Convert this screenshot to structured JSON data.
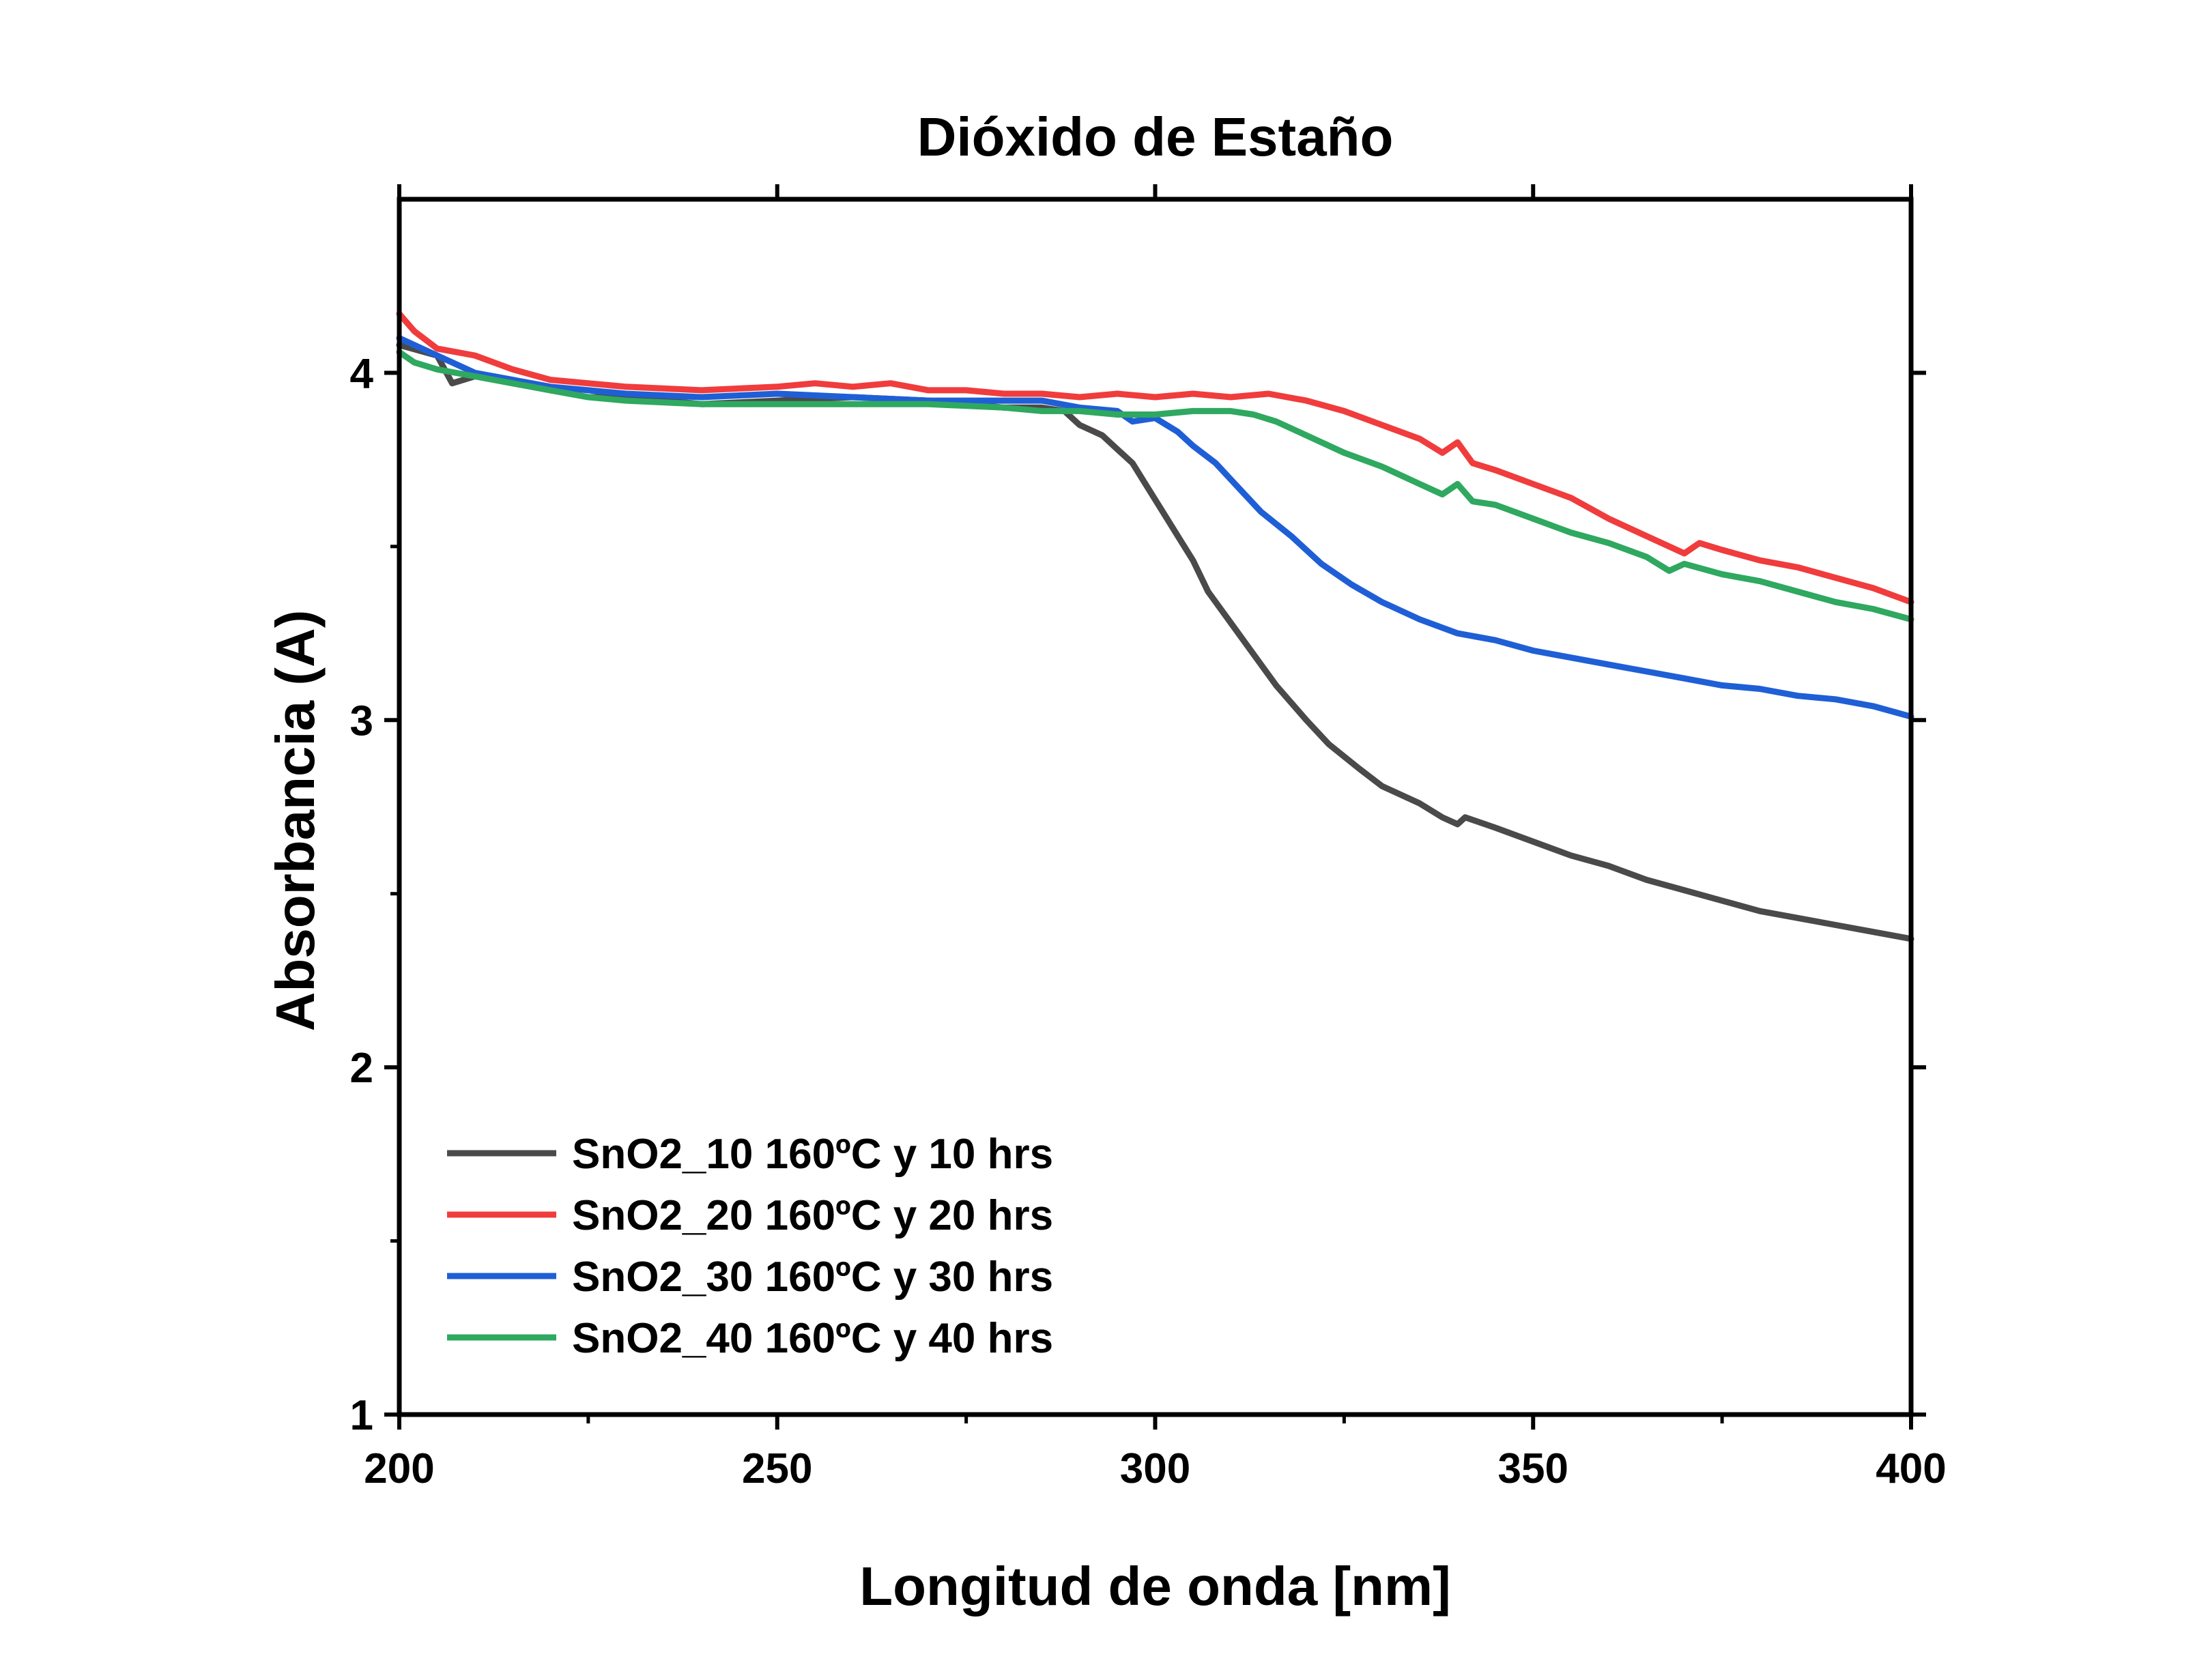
{
  "chart_data": {
    "type": "line",
    "title": "Dióxido de Estaño",
    "xlabel": "Longitud de onda [nm]",
    "ylabel": "Absorbancia (A)",
    "xlim": [
      200,
      400
    ],
    "ylim": [
      1,
      4.5
    ],
    "x_ticks": [
      200,
      250,
      300,
      350,
      400
    ],
    "y_ticks": [
      1,
      2,
      3,
      4
    ],
    "grid": false,
    "legend_position": "bottom-left",
    "series": [
      {
        "name": "SnO2_10 160ºC y 10 hrs",
        "color": "#4a4a4a",
        "points": [
          [
            200,
            4.08
          ],
          [
            205,
            4.05
          ],
          [
            207,
            3.97
          ],
          [
            210,
            3.99
          ],
          [
            215,
            3.97
          ],
          [
            220,
            3.95
          ],
          [
            225,
            3.93
          ],
          [
            230,
            3.93
          ],
          [
            240,
            3.91
          ],
          [
            250,
            3.92
          ],
          [
            260,
            3.93
          ],
          [
            270,
            3.92
          ],
          [
            280,
            3.9
          ],
          [
            285,
            3.9
          ],
          [
            288,
            3.89
          ],
          [
            290,
            3.85
          ],
          [
            293,
            3.82
          ],
          [
            295,
            3.78
          ],
          [
            297,
            3.74
          ],
          [
            299,
            3.67
          ],
          [
            301,
            3.6
          ],
          [
            303,
            3.53
          ],
          [
            305,
            3.46
          ],
          [
            307,
            3.37
          ],
          [
            310,
            3.28
          ],
          [
            313,
            3.19
          ],
          [
            316,
            3.1
          ],
          [
            320,
            3.0
          ],
          [
            323,
            2.93
          ],
          [
            327,
            2.86
          ],
          [
            330,
            2.81
          ],
          [
            335,
            2.76
          ],
          [
            338,
            2.72
          ],
          [
            340,
            2.7
          ],
          [
            341,
            2.72
          ],
          [
            345,
            2.69
          ],
          [
            350,
            2.65
          ],
          [
            355,
            2.61
          ],
          [
            360,
            2.58
          ],
          [
            365,
            2.54
          ],
          [
            370,
            2.51
          ],
          [
            375,
            2.48
          ],
          [
            380,
            2.45
          ],
          [
            385,
            2.43
          ],
          [
            390,
            2.41
          ],
          [
            395,
            2.39
          ],
          [
            400,
            2.37
          ]
        ]
      },
      {
        "name": "SnO2_20 160ºC y 20 hrs",
        "color": "#f03c3c",
        "points": [
          [
            200,
            4.17
          ],
          [
            202,
            4.12
          ],
          [
            205,
            4.07
          ],
          [
            210,
            4.05
          ],
          [
            215,
            4.01
          ],
          [
            220,
            3.98
          ],
          [
            225,
            3.97
          ],
          [
            230,
            3.96
          ],
          [
            240,
            3.95
          ],
          [
            250,
            3.96
          ],
          [
            255,
            3.97
          ],
          [
            260,
            3.96
          ],
          [
            265,
            3.97
          ],
          [
            270,
            3.95
          ],
          [
            275,
            3.95
          ],
          [
            280,
            3.94
          ],
          [
            285,
            3.94
          ],
          [
            290,
            3.93
          ],
          [
            295,
            3.94
          ],
          [
            300,
            3.93
          ],
          [
            305,
            3.94
          ],
          [
            310,
            3.93
          ],
          [
            315,
            3.94
          ],
          [
            320,
            3.92
          ],
          [
            325,
            3.89
          ],
          [
            330,
            3.85
          ],
          [
            335,
            3.81
          ],
          [
            338,
            3.77
          ],
          [
            340,
            3.8
          ],
          [
            342,
            3.74
          ],
          [
            345,
            3.72
          ],
          [
            350,
            3.68
          ],
          [
            355,
            3.64
          ],
          [
            360,
            3.58
          ],
          [
            365,
            3.53
          ],
          [
            370,
            3.48
          ],
          [
            372,
            3.51
          ],
          [
            375,
            3.49
          ],
          [
            380,
            3.46
          ],
          [
            385,
            3.44
          ],
          [
            390,
            3.41
          ],
          [
            395,
            3.38
          ],
          [
            400,
            3.34
          ]
        ]
      },
      {
        "name": "SnO2_30 160ºC y 30 hrs",
        "color": "#1f5fd6",
        "points": [
          [
            200,
            4.1
          ],
          [
            205,
            4.05
          ],
          [
            210,
            4.0
          ],
          [
            215,
            3.98
          ],
          [
            220,
            3.96
          ],
          [
            225,
            3.95
          ],
          [
            230,
            3.94
          ],
          [
            240,
            3.93
          ],
          [
            250,
            3.94
          ],
          [
            260,
            3.93
          ],
          [
            270,
            3.92
          ],
          [
            280,
            3.92
          ],
          [
            285,
            3.92
          ],
          [
            290,
            3.9
          ],
          [
            295,
            3.89
          ],
          [
            297,
            3.86
          ],
          [
            300,
            3.87
          ],
          [
            303,
            3.83
          ],
          [
            305,
            3.79
          ],
          [
            308,
            3.74
          ],
          [
            311,
            3.67
          ],
          [
            314,
            3.6
          ],
          [
            318,
            3.53
          ],
          [
            322,
            3.45
          ],
          [
            326,
            3.39
          ],
          [
            330,
            3.34
          ],
          [
            335,
            3.29
          ],
          [
            340,
            3.25
          ],
          [
            345,
            3.23
          ],
          [
            350,
            3.2
          ],
          [
            355,
            3.18
          ],
          [
            360,
            3.16
          ],
          [
            365,
            3.14
          ],
          [
            370,
            3.12
          ],
          [
            375,
            3.1
          ],
          [
            380,
            3.09
          ],
          [
            385,
            3.07
          ],
          [
            390,
            3.06
          ],
          [
            395,
            3.04
          ],
          [
            400,
            3.01
          ]
        ]
      },
      {
        "name": "SnO2_40 160ºC y 40 hrs",
        "color": "#2fa860",
        "points": [
          [
            200,
            4.06
          ],
          [
            202,
            4.03
          ],
          [
            205,
            4.01
          ],
          [
            210,
            3.99
          ],
          [
            215,
            3.97
          ],
          [
            220,
            3.95
          ],
          [
            225,
            3.93
          ],
          [
            230,
            3.92
          ],
          [
            240,
            3.91
          ],
          [
            250,
            3.91
          ],
          [
            260,
            3.91
          ],
          [
            270,
            3.91
          ],
          [
            280,
            3.9
          ],
          [
            285,
            3.89
          ],
          [
            290,
            3.89
          ],
          [
            295,
            3.88
          ],
          [
            300,
            3.88
          ],
          [
            305,
            3.89
          ],
          [
            310,
            3.89
          ],
          [
            313,
            3.88
          ],
          [
            316,
            3.86
          ],
          [
            320,
            3.82
          ],
          [
            325,
            3.77
          ],
          [
            330,
            3.73
          ],
          [
            335,
            3.68
          ],
          [
            338,
            3.65
          ],
          [
            340,
            3.68
          ],
          [
            342,
            3.63
          ],
          [
            345,
            3.62
          ],
          [
            350,
            3.58
          ],
          [
            355,
            3.54
          ],
          [
            360,
            3.51
          ],
          [
            365,
            3.47
          ],
          [
            368,
            3.43
          ],
          [
            370,
            3.45
          ],
          [
            375,
            3.42
          ],
          [
            380,
            3.4
          ],
          [
            385,
            3.37
          ],
          [
            390,
            3.34
          ],
          [
            395,
            3.32
          ],
          [
            400,
            3.29
          ]
        ]
      }
    ]
  }
}
